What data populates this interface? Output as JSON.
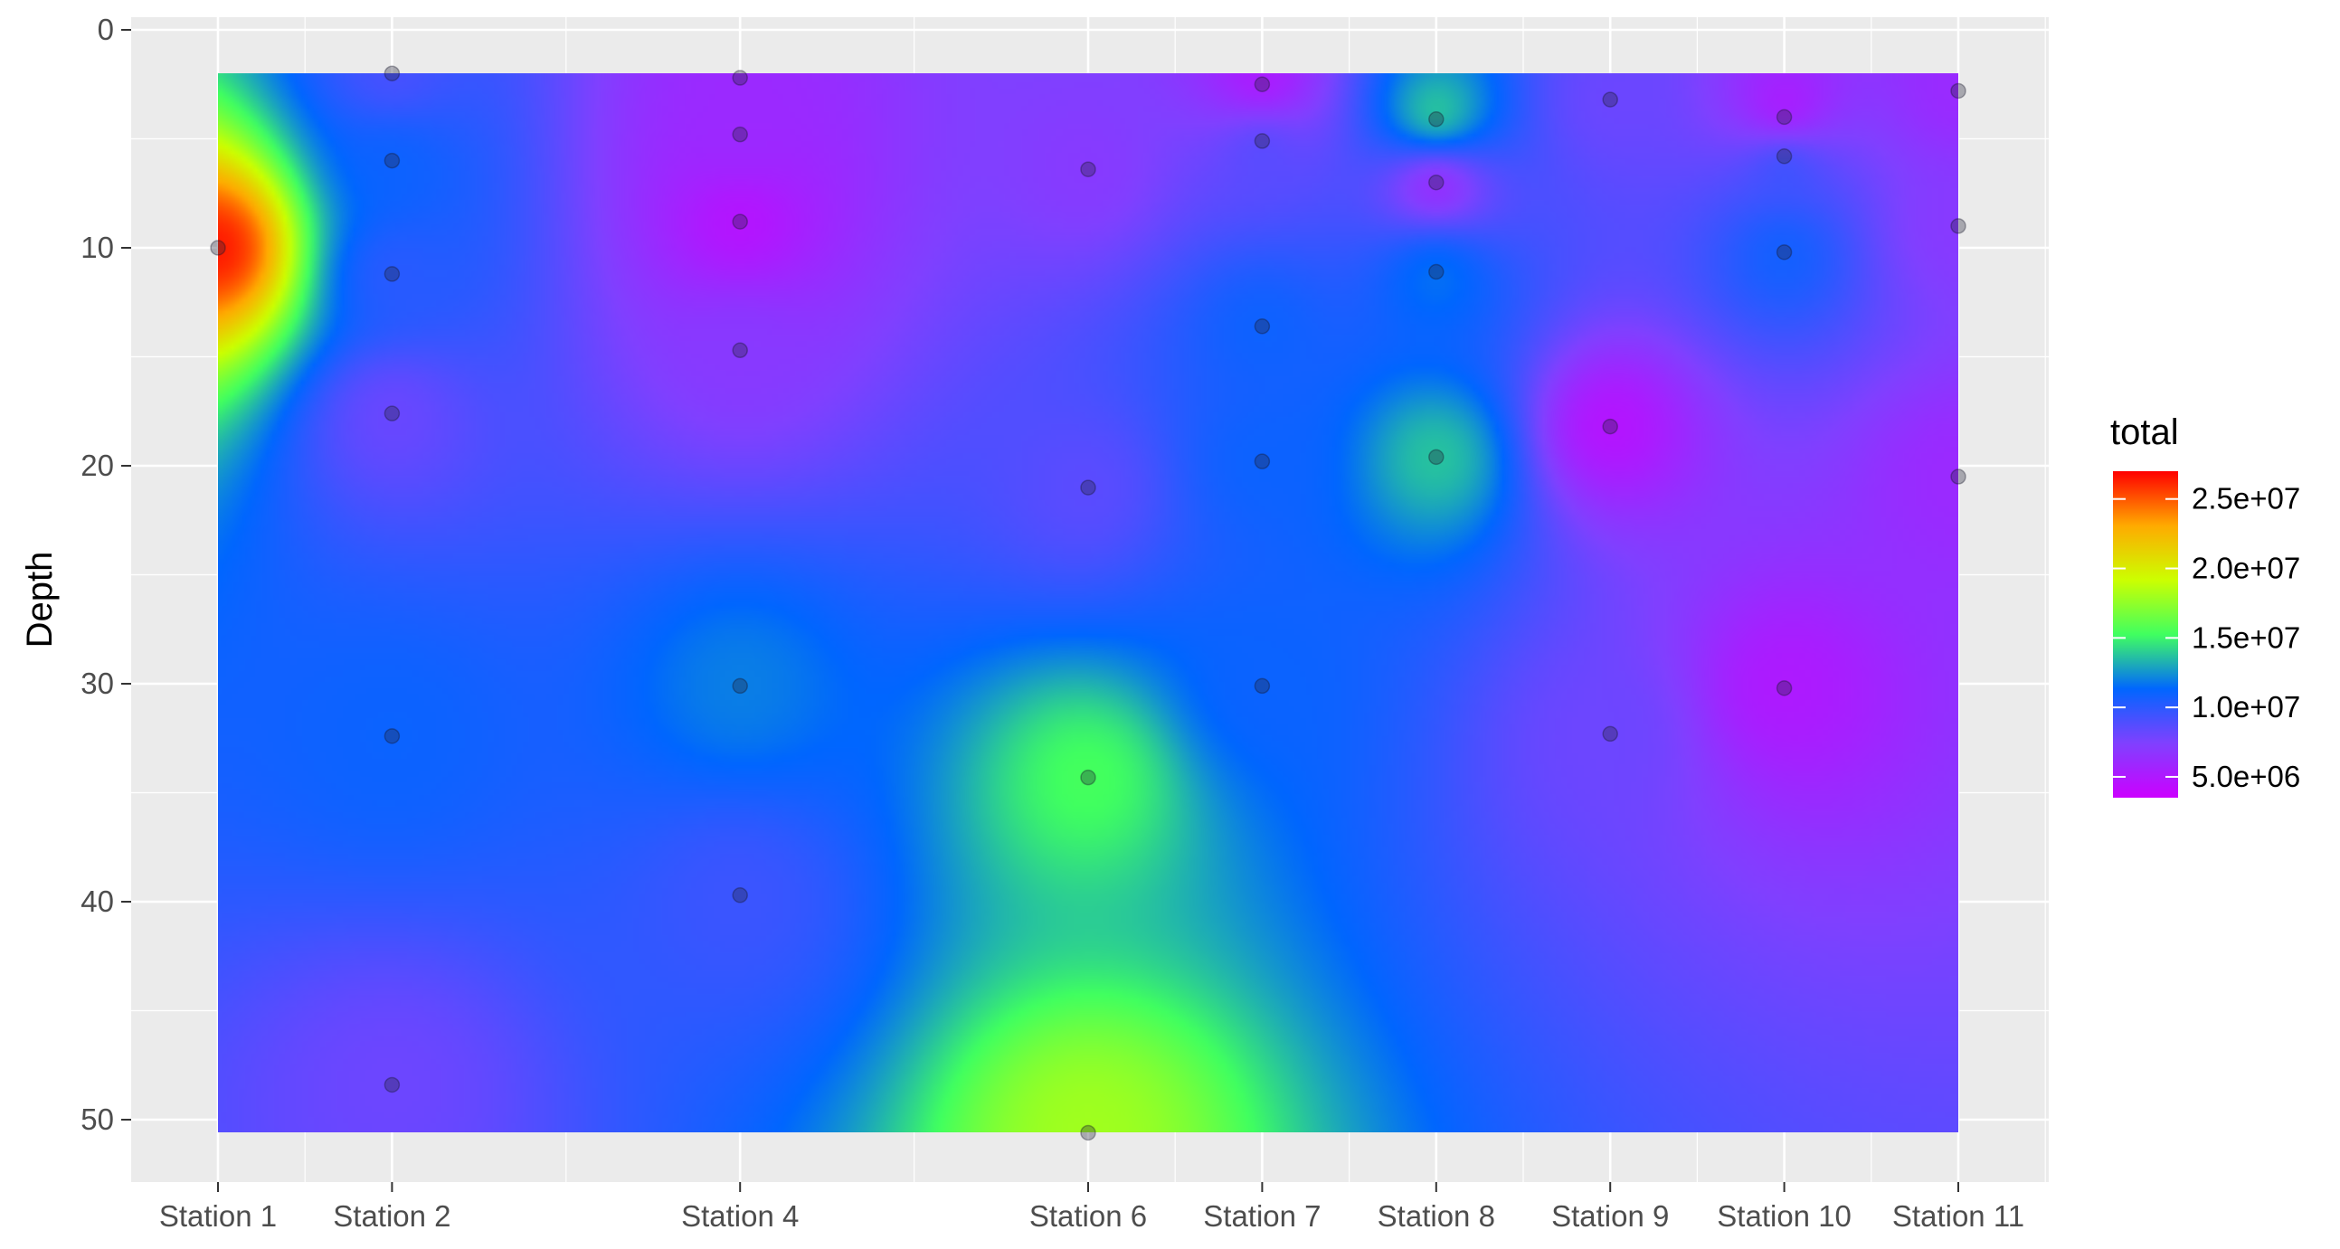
{
  "chart_data": {
    "type": "heatmap",
    "title": "",
    "xlabel": "",
    "ylabel": "Depth",
    "y_reversed": true,
    "ylim": [
      0,
      50
    ],
    "y_ticks": [
      0,
      10,
      20,
      30,
      40,
      50
    ],
    "stations": [
      {
        "label": "Station 1",
        "x": 1
      },
      {
        "label": "Station 2",
        "x": 2
      },
      {
        "label": "Station 4",
        "x": 4
      },
      {
        "label": "Station 6",
        "x": 6
      },
      {
        "label": "Station 7",
        "x": 7
      },
      {
        "label": "Station 8",
        "x": 8
      },
      {
        "label": "Station 9",
        "x": 9
      },
      {
        "label": "Station 10",
        "x": 10
      },
      {
        "label": "Station 11",
        "x": 11
      }
    ],
    "fill_legend": {
      "title": "total",
      "range": [
        3500000,
        27000000
      ],
      "colors": [
        "#cc00ff",
        "#8040ff",
        "#0066ff",
        "#40ff60",
        "#ccff00",
        "#ffaa00",
        "#ff0000"
      ],
      "breaks": [
        {
          "value": 25000000,
          "label": "2.5e+07"
        },
        {
          "value": 20000000,
          "label": "2.0e+07"
        },
        {
          "value": 15000000,
          "label": "1.5e+07"
        },
        {
          "value": 10000000,
          "label": "1.0e+07"
        },
        {
          "value": 5000000,
          "label": "5.0e+06"
        }
      ]
    },
    "points": [
      {
        "x": 1,
        "depth": 10,
        "total": 27000000
      },
      {
        "x": 2,
        "depth": 2,
        "total": 9000000
      },
      {
        "x": 2,
        "depth": 6,
        "total": 11000000
      },
      {
        "x": 2,
        "depth": 11.2,
        "total": 10000000
      },
      {
        "x": 2,
        "depth": 17.6,
        "total": 8000000
      },
      {
        "x": 2,
        "depth": 32.4,
        "total": 11000000
      },
      {
        "x": 2,
        "depth": 48.4,
        "total": 8000000
      },
      {
        "x": 4,
        "depth": 2.2,
        "total": 6000000
      },
      {
        "x": 4,
        "depth": 4.8,
        "total": 6000000
      },
      {
        "x": 4,
        "depth": 8.8,
        "total": 4500000
      },
      {
        "x": 4,
        "depth": 14.7,
        "total": 7000000
      },
      {
        "x": 4,
        "depth": 30.1,
        "total": 12000000
      },
      {
        "x": 4,
        "depth": 39.7,
        "total": 9500000
      },
      {
        "x": 6,
        "depth": 6.4,
        "total": 7000000
      },
      {
        "x": 6,
        "depth": 21,
        "total": 8500000
      },
      {
        "x": 6,
        "depth": 34.3,
        "total": 15500000
      },
      {
        "x": 6,
        "depth": 50.6,
        "total": 18000000
      },
      {
        "x": 7,
        "depth": 2.5,
        "total": 4500000
      },
      {
        "x": 7,
        "depth": 5.1,
        "total": 9000000
      },
      {
        "x": 7,
        "depth": 13.6,
        "total": 11000000
      },
      {
        "x": 7,
        "depth": 19.8,
        "total": 11000000
      },
      {
        "x": 7,
        "depth": 30.1,
        "total": 11000000
      },
      {
        "x": 8,
        "depth": 4.1,
        "total": 15000000
      },
      {
        "x": 8,
        "depth": 7,
        "total": 5000000
      },
      {
        "x": 8,
        "depth": 11.1,
        "total": 12000000
      },
      {
        "x": 8,
        "depth": 19.6,
        "total": 14000000
      },
      {
        "x": 9,
        "depth": 3.2,
        "total": 8000000
      },
      {
        "x": 9,
        "depth": 18.2,
        "total": 4500000
      },
      {
        "x": 9,
        "depth": 32.3,
        "total": 8000000
      },
      {
        "x": 10,
        "depth": 4,
        "total": 4000000
      },
      {
        "x": 10,
        "depth": 5.8,
        "total": 10500000
      },
      {
        "x": 10,
        "depth": 10.2,
        "total": 11000000
      },
      {
        "x": 10,
        "depth": 30.2,
        "total": 5000000
      },
      {
        "x": 11,
        "depth": 2.8,
        "total": 6000000
      },
      {
        "x": 11,
        "depth": 9,
        "total": 7000000
      },
      {
        "x": 11,
        "depth": 20.5,
        "total": 6000000
      }
    ]
  }
}
